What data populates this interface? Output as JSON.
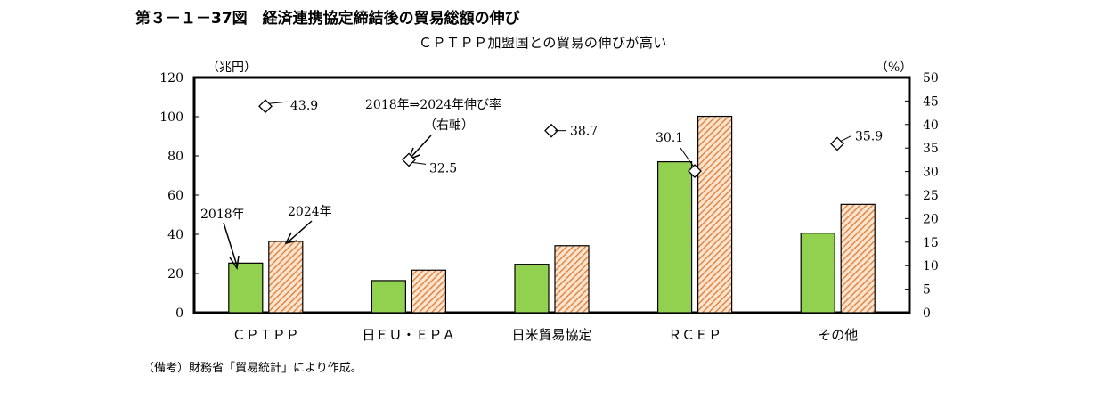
{
  "figure": {
    "title": "第３－１－37図　経済連携協定締結後の貿易総額の伸び",
    "subtitle": "ＣＰＴＰＰ加盟国との貿易の伸びが高い",
    "note": "（備考）財務省「貿易統計」により作成。"
  },
  "colors": {
    "series_2018": "#92d050",
    "series_2024_stripe": "#e07a30",
    "series_2024_bg": "#fbe4cf",
    "axis": "#000000"
  },
  "chart_data": {
    "type": "bar",
    "categories": [
      "ＣＰＴＰＰ",
      "日ＥＵ・ＥＰＡ",
      "日米貿易協定",
      "ＲＣＥＰ",
      "その他"
    ],
    "series": [
      {
        "name": "2018年",
        "axis": "left",
        "values": [
          25.3,
          16.4,
          24.7,
          77.0,
          40.6
        ]
      },
      {
        "name": "2024年",
        "axis": "left",
        "values": [
          36.4,
          21.7,
          34.2,
          100.2,
          55.3
        ]
      },
      {
        "name": "2018年⇒2024年伸び率（右軸）",
        "axis": "right",
        "marker": "diamond",
        "values": [
          43.9,
          32.5,
          38.7,
          30.1,
          35.9
        ]
      }
    ],
    "point_labels": [
      "43.9",
      "32.5",
      "38.7",
      "30.1",
      "35.9"
    ],
    "left_axis": {
      "label": "（兆円）",
      "min": 0,
      "max": 120,
      "ticks": [
        "0",
        "20",
        "40",
        "60",
        "80",
        "100",
        "120"
      ]
    },
    "right_axis": {
      "label": "（%）",
      "min": 0,
      "max": 50,
      "ticks": [
        "0",
        "5",
        "10",
        "15",
        "20",
        "25",
        "30",
        "35",
        "40",
        "45",
        "50"
      ]
    },
    "annotations": {
      "label_2018": "2018年",
      "label_2024": "2024年",
      "rate_line1": "2018年⇒2024年伸び率",
      "rate_line2": "（右軸）"
    },
    "grid": false,
    "legend": "none"
  }
}
